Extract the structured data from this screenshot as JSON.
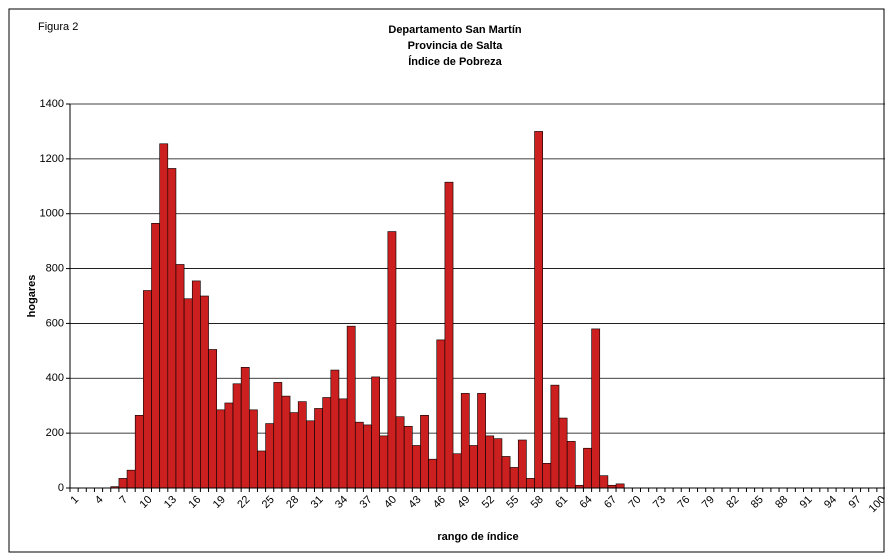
{
  "chart_data": {
    "type": "bar",
    "annotation": "Figura 2",
    "title": [
      "Departamento San Martín",
      "Provincia de Salta",
      "Índice de Pobreza"
    ],
    "x_label": "rango de índice",
    "y_label": "hogares",
    "categories": [
      "1",
      null,
      null,
      "4",
      null,
      null,
      "7",
      null,
      null,
      "10",
      null,
      null,
      "13",
      null,
      null,
      "16",
      null,
      null,
      "19",
      null,
      null,
      "22",
      null,
      null,
      "25",
      null,
      null,
      "28",
      null,
      null,
      "31",
      null,
      null,
      "34",
      null,
      null,
      "37",
      null,
      null,
      "40",
      null,
      null,
      "43",
      null,
      null,
      "46",
      null,
      null,
      "49",
      null,
      null,
      "52",
      null,
      null,
      "55",
      null,
      null,
      "58",
      null,
      null,
      "61",
      null,
      null,
      "64",
      null,
      null,
      "67",
      null,
      null,
      "70",
      null,
      null,
      "73",
      null,
      null,
      "76",
      null,
      null,
      "79",
      null,
      null,
      "82",
      null,
      null,
      "85",
      null,
      null,
      "88",
      null,
      null,
      "91",
      null,
      null,
      "94",
      null,
      null,
      "97",
      null,
      null,
      "100"
    ],
    "values": [
      0,
      0,
      0,
      0,
      0,
      5,
      35,
      65,
      265,
      720,
      965,
      1255,
      1165,
      815,
      690,
      755,
      700,
      505,
      285,
      310,
      380,
      440,
      285,
      135,
      235,
      385,
      335,
      275,
      315,
      245,
      290,
      330,
      430,
      325,
      590,
      240,
      230,
      405,
      190,
      935,
      260,
      225,
      155,
      265,
      105,
      540,
      1115,
      125,
      345,
      155,
      345,
      190,
      180,
      115,
      75,
      175,
      35,
      1300,
      90,
      375,
      255,
      170,
      10,
      145,
      580,
      45,
      10,
      15,
      0,
      0,
      0,
      0,
      0,
      0,
      0,
      0,
      0,
      0,
      0,
      0,
      0,
      0,
      0,
      0,
      0,
      0,
      0,
      0,
      0,
      0,
      0,
      0,
      0,
      0,
      0,
      0,
      0,
      0,
      0,
      0
    ],
    "color": "#cc1f1f",
    "ylim": [
      0,
      1400
    ],
    "yticks": [
      0,
      200,
      400,
      600,
      800,
      1000,
      1200,
      1400
    ],
    "grid": true
  }
}
